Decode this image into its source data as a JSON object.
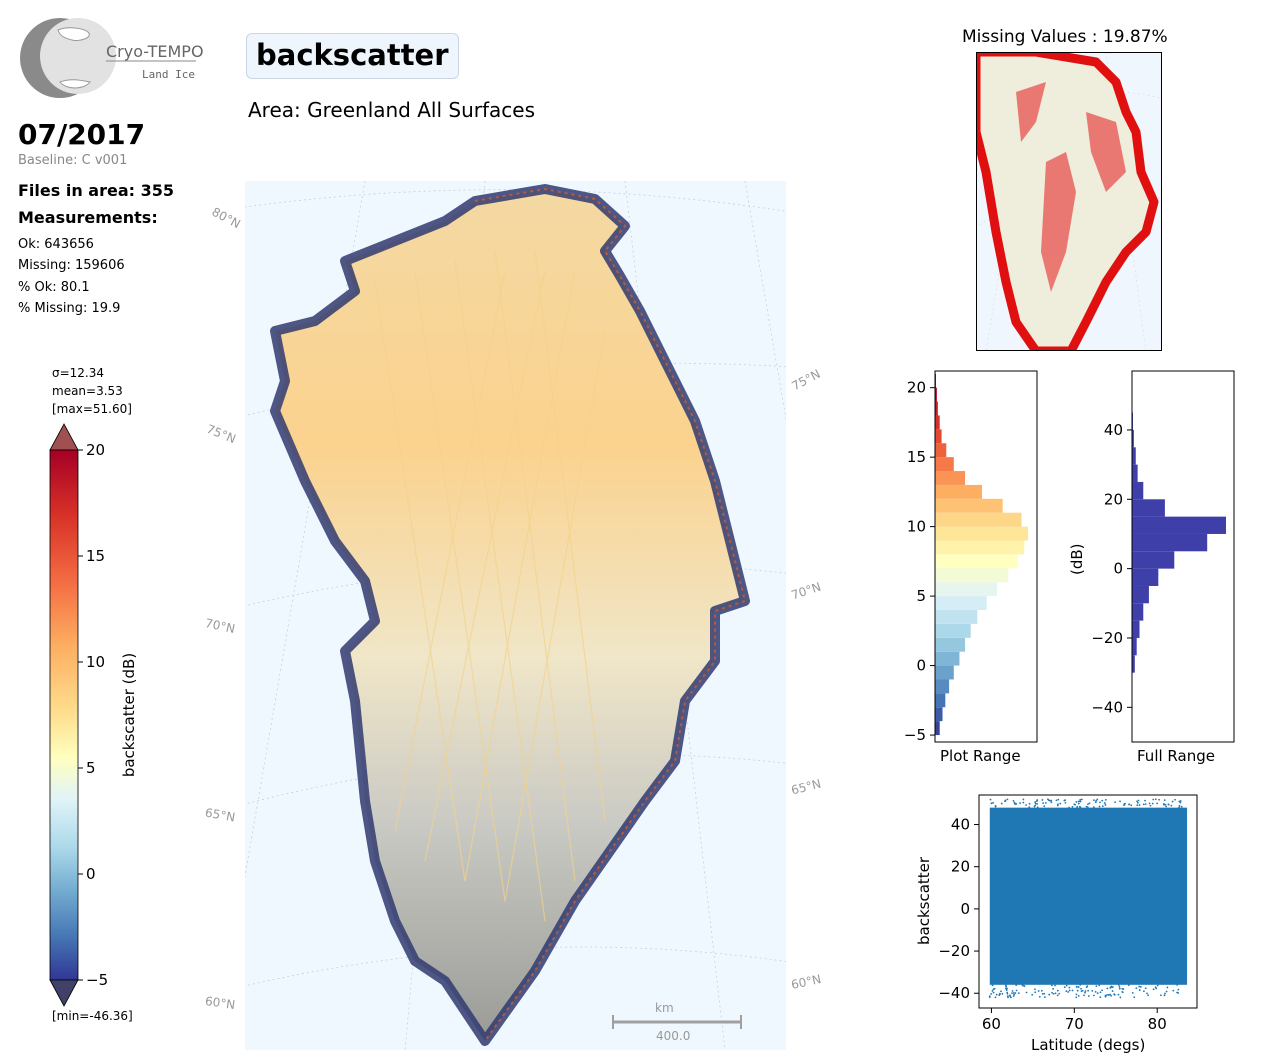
{
  "header": {
    "logo_name": "Cryo-TEMPO",
    "logo_sub": "Land Ice",
    "parameter": "backscatter",
    "area": "Area: Greenland All Surfaces",
    "date": "07/2017",
    "baseline": "Baseline: C v001"
  },
  "stats": {
    "files": "Files in area: 355",
    "measurements_label": "Measurements:",
    "ok": "Ok: 643656",
    "missing": "Missing: 159606",
    "pct_ok": "% Ok: 80.1",
    "pct_missing": "% Missing: 19.9"
  },
  "colorbar": {
    "sigma": "σ=12.34",
    "mean": "mean=3.53",
    "max": "[max=51.60]",
    "min": "[min=-46.36]",
    "label": "backscatter (dB)",
    "ticks": [
      "20",
      "15",
      "10",
      "5",
      "0",
      "−5"
    ]
  },
  "map": {
    "lat_labels_left": [
      "80°N",
      "75°N",
      "70°N",
      "65°N",
      "60°N"
    ],
    "lat_labels_right": [
      "75°N",
      "70°N",
      "65°N",
      "60°N"
    ],
    "scale_unit": "km",
    "scale_value": "400.0"
  },
  "missing_map": {
    "title": "Missing Values : 19.87%"
  },
  "chart_data": [
    {
      "type": "bar",
      "orientation": "horizontal",
      "xlabel": "Plot Range",
      "ylim": [
        -5.5,
        21.2
      ],
      "yticks": [
        "20",
        "15",
        "10",
        "5",
        "0",
        "−5"
      ],
      "bins": [
        -5,
        -4,
        -3,
        -2,
        -1,
        0,
        1,
        2,
        3,
        4,
        5,
        6,
        7,
        8,
        9,
        10,
        11,
        12,
        13,
        14,
        15,
        16,
        17,
        18,
        19,
        20
      ],
      "values": [
        0.05,
        0.08,
        0.11,
        0.15,
        0.2,
        0.26,
        0.32,
        0.38,
        0.45,
        0.55,
        0.66,
        0.78,
        0.88,
        0.95,
        0.99,
        0.92,
        0.72,
        0.5,
        0.32,
        0.2,
        0.12,
        0.07,
        0.05,
        0.03,
        0.02,
        0.01
      ],
      "colormap": "RdYlBu_r"
    },
    {
      "type": "bar",
      "orientation": "horizontal",
      "xlabel": "Full Range",
      "ylabel": "(dB)",
      "ylim": [
        -50,
        57
      ],
      "yticks": [
        "40",
        "20",
        "0",
        "−20",
        "−40"
      ],
      "bins": [
        -30,
        -25,
        -20,
        -15,
        -10,
        -5,
        0,
        5,
        10,
        15,
        20,
        25,
        30,
        35,
        40
      ],
      "values": [
        0.03,
        0.05,
        0.08,
        0.12,
        0.18,
        0.28,
        0.45,
        0.8,
        1.0,
        0.35,
        0.12,
        0.06,
        0.04,
        0.02,
        0.01
      ],
      "color": "#3f3faa"
    },
    {
      "type": "scatter",
      "xlabel": "Latitude (degs)",
      "ylabel": "backscatter",
      "xlim": [
        58.5,
        84.8
      ],
      "ylim": [
        -47,
        54
      ],
      "xticks": [
        "60",
        "70",
        "80"
      ],
      "yticks": [
        "40",
        "20",
        "0",
        "−20",
        "−40"
      ],
      "x_range": [
        59.8,
        83.6
      ],
      "y_range": [
        -36,
        48
      ],
      "color": "#1f77b4"
    }
  ]
}
